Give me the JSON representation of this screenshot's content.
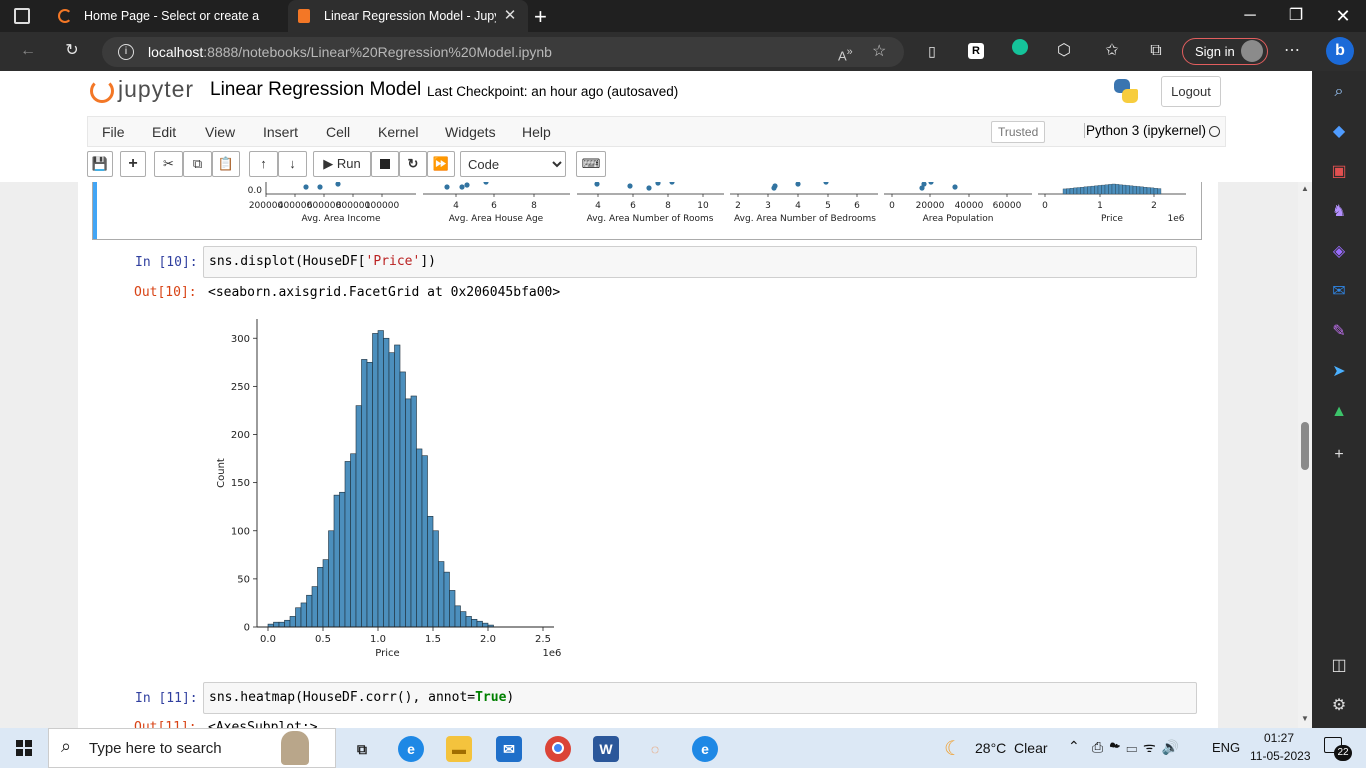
{
  "browser": {
    "tabs": [
      {
        "title": "Home Page - Select or create a n"
      },
      {
        "title": "Linear Regression Model - Jupyte"
      }
    ],
    "url_host": "localhost",
    "url_path": ":8888/notebooks/Linear%20Regression%20Model.ipynb",
    "signin_label": "Sign in"
  },
  "jupyter": {
    "logo_text": "jupyter",
    "notebook_title": "Linear Regression Model",
    "checkpoint": "Last Checkpoint: an hour ago",
    "autosaved": "(autosaved)",
    "logout_label": "Logout",
    "menu": [
      "File",
      "Edit",
      "View",
      "Insert",
      "Cell",
      "Kernel",
      "Widgets",
      "Help"
    ],
    "trusted": "Trusted",
    "kernel": "Python 3 (ipykernel)",
    "run_label": "Run",
    "cell_type": "Code",
    "cell_type_options": [
      "Code"
    ]
  },
  "pairplot_strip": {
    "panels": [
      {
        "xlabel": "Avg. Area Income",
        "ticks": [
          "200000",
          "400000",
          "600000",
          "800000",
          "100000"
        ]
      },
      {
        "xlabel": "Avg. Area House Age",
        "ticks": [
          "4",
          "6",
          "8"
        ]
      },
      {
        "xlabel": "Avg. Area Number of Rooms",
        "ticks": [
          "4",
          "6",
          "8",
          "10"
        ]
      },
      {
        "xlabel": "Avg. Area Number of Bedrooms",
        "ticks": [
          "2",
          "3",
          "4",
          "5",
          "6"
        ]
      },
      {
        "xlabel": "Area Population",
        "ticks": [
          "0",
          "20000",
          "40000",
          "60000"
        ]
      },
      {
        "xlabel": "Price",
        "ticks": [
          "0",
          "1",
          "2"
        ],
        "offset": "1e6"
      }
    ],
    "ytick": "0.0"
  },
  "cells": [
    {
      "prompt_in": "In [10]:",
      "code_fn": "sns.displot(HouseDF[",
      "code_str": "'Price'",
      "code_end": "])",
      "prompt_out": "Out[10]:",
      "output": "<seaborn.axisgrid.FacetGrid at 0x206045bfa00>"
    },
    {
      "prompt_in": "In [11]:",
      "code_fn": "sns.heatmap(HouseDF.corr(), annot=",
      "code_kw": "True",
      "code_end": ")",
      "prompt_out": "Out[11]:",
      "output": "<AxesSubplot:>"
    }
  ],
  "chart_data": {
    "type": "bar",
    "title": "",
    "xlabel": "Price",
    "ylabel": "Count",
    "x_offset_label": "1e6",
    "xlim": [
      -0.1,
      2.6
    ],
    "ylim": [
      0,
      320
    ],
    "xticks": [
      0.0,
      0.5,
      1.0,
      1.5,
      2.0,
      2.5
    ],
    "xtick_labels": [
      "0.0",
      "0.5",
      "1.0",
      "1.5",
      "2.0",
      "2.5"
    ],
    "yticks": [
      0,
      50,
      100,
      150,
      200,
      250,
      300
    ],
    "ytick_labels": [
      "0",
      "50",
      "100",
      "150",
      "200",
      "250",
      "300"
    ],
    "bin_start": 0.0,
    "bin_width": 0.05,
    "values": [
      3,
      5,
      5,
      7,
      11,
      20,
      25,
      33,
      42,
      62,
      70,
      100,
      137,
      140,
      172,
      180,
      230,
      278,
      275,
      305,
      308,
      300,
      285,
      293,
      265,
      237,
      240,
      185,
      178,
      115,
      100,
      68,
      57,
      38,
      22,
      16,
      11,
      8,
      6,
      4,
      2
    ]
  },
  "taskbar": {
    "search_placeholder": "Type here to search",
    "weather": "28°C  Clear",
    "lang": "ENG",
    "time": "01:27",
    "date": "11-05-2023",
    "notifications": "22"
  }
}
